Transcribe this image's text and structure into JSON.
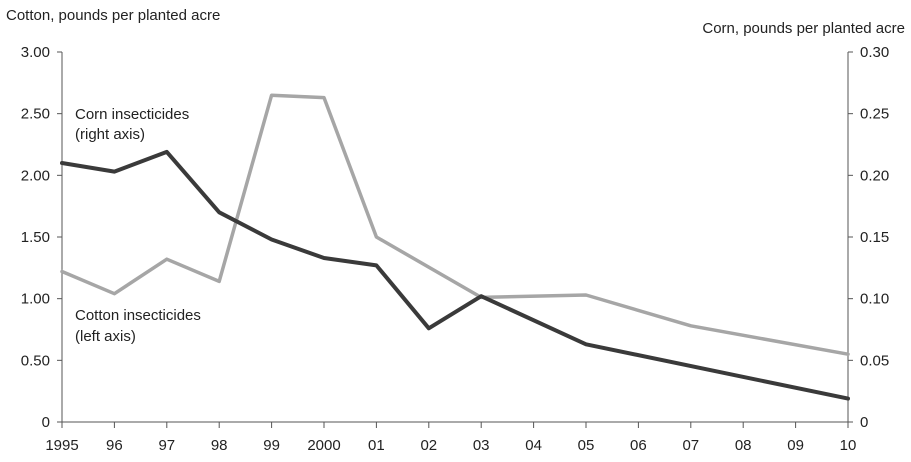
{
  "chart_data": {
    "type": "line",
    "title": "",
    "left_axis_title": "Cotton, pounds per planted acre",
    "right_axis_title": "Corn, pounds per planted acre",
    "x_tick_labels": [
      "1995",
      "96",
      "97",
      "98",
      "99",
      "2000",
      "01",
      "02",
      "03",
      "04",
      "05",
      "06",
      "07",
      "08",
      "09",
      "10"
    ],
    "left_ticks": [
      "3.00",
      "2.50",
      "2.00",
      "1.50",
      "1.00",
      "0.50",
      "0"
    ],
    "right_ticks": [
      "0.30",
      "0.25",
      "0.20",
      "0.15",
      "0.10",
      "0.05",
      "0"
    ],
    "ylim_left": [
      0,
      3
    ],
    "ylim_right": [
      0,
      0.3
    ],
    "x": [
      1995,
      1996,
      1997,
      1998,
      1999,
      2000,
      2001,
      2002,
      2003,
      2004,
      2005,
      2006,
      2007,
      2008,
      2009,
      2010
    ],
    "series": [
      {
        "name": "Corn insecticides",
        "axis": "right",
        "color": "#3a3a3a",
        "x": [
          1995,
          1996,
          1997,
          1998,
          1999,
          2000,
          2001,
          2002,
          2003,
          2005,
          2010
        ],
        "values": [
          0.21,
          0.203,
          0.219,
          0.17,
          0.148,
          0.133,
          0.127,
          0.076,
          0.102,
          0.063,
          0.019
        ]
      },
      {
        "name": "Cotton insecticides",
        "axis": "left",
        "color": "#a6a6a6",
        "x": [
          1995,
          1996,
          1997,
          1998,
          1999,
          2000,
          2001,
          2003,
          2005,
          2007,
          2010
        ],
        "values": [
          1.22,
          1.04,
          1.32,
          1.14,
          2.65,
          2.63,
          1.5,
          1.01,
          1.03,
          0.78,
          0.55
        ]
      }
    ],
    "annotations": [
      {
        "series": "Corn insecticides",
        "lines": [
          "Corn insecticides",
          "(right axis)"
        ]
      },
      {
        "series": "Cotton insecticides",
        "lines": [
          "Cotton insecticides",
          "(left axis)"
        ]
      }
    ],
    "grid": false
  }
}
